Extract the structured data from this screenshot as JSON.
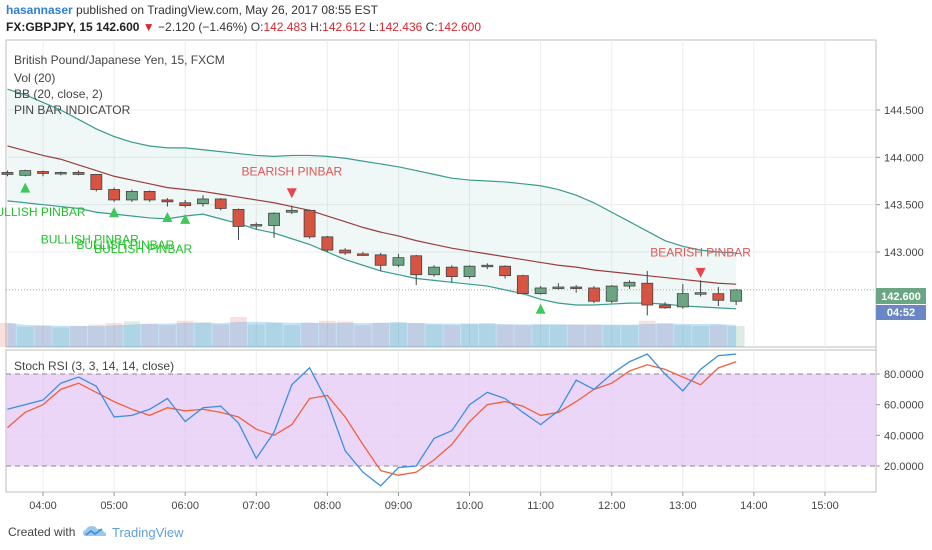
{
  "header": {
    "user": "hasannaser",
    "published_text": "published on TradingView.com, May 26, 2017 08:55 EST",
    "symbol_line": "FX:GBPJPY, 15",
    "last": "142.600",
    "change": "−2.120 (−1.46%)",
    "o_label": "O:",
    "o_value": "142.483",
    "h_label": "H:",
    "h_value": "142.612",
    "l_label": "L:",
    "l_value": "142.436",
    "c_label": "C:",
    "c_value": "142.600"
  },
  "legend": {
    "title": "British Pound/Japanese Yen, 15, FXCM",
    "vol": "Vol (20)",
    "bb": "BB (20, close, 2)",
    "pinbar": "PIN BAR INDICATOR",
    "stoch": "Stoch RSI (3, 3, 14, 14, close)"
  },
  "price_badge": "142.600",
  "timer_badge": "04:52",
  "footer": {
    "created": "Created with",
    "brand": "TradingView"
  },
  "colors": {
    "up": "#6ba583",
    "down": "#d75442",
    "bb_band": "#3a9b8f",
    "bb_basis": "#9b3d3d",
    "stoch_k": "#3b8fe0",
    "stoch_d": "#f0603b",
    "stoch_bg": "#e6c8f5",
    "bull_text": "#22c22a",
    "bear_text": "#e05555"
  },
  "chart_data": [
    {
      "type": "candlestick",
      "title": "British Pound/Japanese Yen, 15, FXCM",
      "x_ticks": [
        "04:00",
        "05:00",
        "06:00",
        "07:00",
        "08:00",
        "09:00",
        "10:00",
        "11:00",
        "12:00",
        "13:00",
        "14:00",
        "15:00"
      ],
      "y_ticks": [
        144.5,
        144.0,
        143.5,
        143.0
      ],
      "y_tick_labels": [
        "144.500",
        "144.000",
        "143.500",
        "143.000"
      ],
      "ylim": [
        142.32,
        144.82
      ],
      "xlim": [
        "03:30",
        "15:40"
      ],
      "candles": [
        {
          "t": "03:30",
          "o": 143.84,
          "h": 143.86,
          "l": 143.8,
          "c": 143.82
        },
        {
          "t": "03:45",
          "o": 143.81,
          "h": 143.87,
          "l": 143.8,
          "c": 143.86
        },
        {
          "t": "04:00",
          "o": 143.85,
          "h": 143.86,
          "l": 143.8,
          "c": 143.83
        },
        {
          "t": "04:15",
          "o": 143.83,
          "h": 143.85,
          "l": 143.81,
          "c": 143.84
        },
        {
          "t": "04:30",
          "o": 143.84,
          "h": 143.86,
          "l": 143.81,
          "c": 143.82
        },
        {
          "t": "04:45",
          "o": 143.82,
          "h": 143.82,
          "l": 143.64,
          "c": 143.66
        },
        {
          "t": "05:00",
          "o": 143.66,
          "h": 143.68,
          "l": 143.53,
          "c": 143.55
        },
        {
          "t": "05:15",
          "o": 143.55,
          "h": 143.66,
          "l": 143.53,
          "c": 143.64
        },
        {
          "t": "05:30",
          "o": 143.64,
          "h": 143.65,
          "l": 143.53,
          "c": 143.55
        },
        {
          "t": "05:45",
          "o": 143.55,
          "h": 143.57,
          "l": 143.48,
          "c": 143.53
        },
        {
          "t": "06:00",
          "o": 143.52,
          "h": 143.55,
          "l": 143.47,
          "c": 143.49
        },
        {
          "t": "06:15",
          "o": 143.51,
          "h": 143.6,
          "l": 143.48,
          "c": 143.56
        },
        {
          "t": "06:30",
          "o": 143.56,
          "h": 143.57,
          "l": 143.44,
          "c": 143.46
        },
        {
          "t": "06:45",
          "o": 143.45,
          "h": 143.46,
          "l": 143.13,
          "c": 143.27
        },
        {
          "t": "07:00",
          "o": 143.28,
          "h": 143.31,
          "l": 143.24,
          "c": 143.29
        },
        {
          "t": "07:15",
          "o": 143.28,
          "h": 143.42,
          "l": 143.15,
          "c": 143.41
        },
        {
          "t": "07:30",
          "o": 143.42,
          "h": 143.49,
          "l": 143.4,
          "c": 143.44
        },
        {
          "t": "07:45",
          "o": 143.44,
          "h": 143.45,
          "l": 143.14,
          "c": 143.16
        },
        {
          "t": "08:00",
          "o": 143.16,
          "h": 143.17,
          "l": 143.0,
          "c": 143.02
        },
        {
          "t": "08:15",
          "o": 143.02,
          "h": 143.04,
          "l": 142.97,
          "c": 142.99
        },
        {
          "t": "08:30",
          "o": 142.98,
          "h": 143.0,
          "l": 142.96,
          "c": 142.97
        },
        {
          "t": "08:45",
          "o": 142.97,
          "h": 142.99,
          "l": 142.8,
          "c": 142.86
        },
        {
          "t": "09:00",
          "o": 142.86,
          "h": 142.98,
          "l": 142.84,
          "c": 142.94
        },
        {
          "t": "09:15",
          "o": 142.96,
          "h": 142.97,
          "l": 142.65,
          "c": 142.76
        },
        {
          "t": "09:30",
          "o": 142.76,
          "h": 142.86,
          "l": 142.74,
          "c": 142.84
        },
        {
          "t": "09:45",
          "o": 142.84,
          "h": 142.86,
          "l": 142.68,
          "c": 142.74
        },
        {
          "t": "10:00",
          "o": 142.74,
          "h": 142.86,
          "l": 142.72,
          "c": 142.85
        },
        {
          "t": "10:15",
          "o": 142.86,
          "h": 142.88,
          "l": 142.82,
          "c": 142.86
        },
        {
          "t": "10:30",
          "o": 142.85,
          "h": 142.86,
          "l": 142.72,
          "c": 142.75
        },
        {
          "t": "10:45",
          "o": 142.75,
          "h": 142.76,
          "l": 142.55,
          "c": 142.56
        },
        {
          "t": "11:00",
          "o": 142.56,
          "h": 142.64,
          "l": 142.55,
          "c": 142.62
        },
        {
          "t": "11:15",
          "o": 142.62,
          "h": 142.67,
          "l": 142.6,
          "c": 142.63
        },
        {
          "t": "11:30",
          "o": 142.63,
          "h": 142.65,
          "l": 142.57,
          "c": 142.62
        },
        {
          "t": "11:45",
          "o": 142.62,
          "h": 142.64,
          "l": 142.46,
          "c": 142.48
        },
        {
          "t": "12:00",
          "o": 142.48,
          "h": 142.65,
          "l": 142.46,
          "c": 142.64
        },
        {
          "t": "12:15",
          "o": 142.64,
          "h": 142.7,
          "l": 142.61,
          "c": 142.68
        },
        {
          "t": "12:30",
          "o": 142.67,
          "h": 142.8,
          "l": 142.33,
          "c": 142.44
        },
        {
          "t": "12:45",
          "o": 142.44,
          "h": 142.47,
          "l": 142.4,
          "c": 142.41
        },
        {
          "t": "13:00",
          "o": 142.42,
          "h": 142.66,
          "l": 142.4,
          "c": 142.56
        },
        {
          "t": "13:15",
          "o": 142.56,
          "h": 142.7,
          "l": 142.53,
          "c": 142.57
        },
        {
          "t": "13:30",
          "o": 142.56,
          "h": 142.63,
          "l": 142.43,
          "c": 142.49
        },
        {
          "t": "13:45",
          "o": 142.48,
          "h": 142.61,
          "l": 142.44,
          "c": 142.6
        }
      ],
      "bollinger": {
        "upper": [
          144.72,
          144.66,
          144.58,
          144.5,
          144.4,
          144.3,
          144.22,
          144.16,
          144.12,
          144.1,
          144.1,
          144.08,
          144.06,
          144.04,
          144.02,
          144.01,
          144.02,
          144.02,
          144.01,
          143.99,
          143.96,
          143.93,
          143.9,
          143.86,
          143.82,
          143.78,
          143.76,
          143.75,
          143.74,
          143.72,
          143.7,
          143.66,
          143.6,
          143.52,
          143.42,
          143.32,
          143.22,
          143.12,
          143.06,
          143.02,
          143.0,
          142.99
        ],
        "basis": [
          144.12,
          144.07,
          144.02,
          143.98,
          143.92,
          143.86,
          143.8,
          143.76,
          143.72,
          143.68,
          143.66,
          143.64,
          143.61,
          143.58,
          143.55,
          143.52,
          143.48,
          143.44,
          143.38,
          143.32,
          143.26,
          143.21,
          143.17,
          143.12,
          143.08,
          143.04,
          143.01,
          142.98,
          142.95,
          142.92,
          142.89,
          142.86,
          142.84,
          142.81,
          142.79,
          142.77,
          142.75,
          142.73,
          142.71,
          142.69,
          142.67,
          142.66
        ],
        "lower": [
          143.54,
          143.52,
          143.5,
          143.48,
          143.46,
          143.42,
          143.4,
          143.38,
          143.36,
          143.35,
          143.38,
          143.4,
          143.35,
          143.3,
          143.24,
          143.2,
          143.14,
          143.08,
          143.0,
          142.92,
          142.86,
          142.8,
          142.76,
          142.72,
          142.7,
          142.68,
          142.66,
          142.64,
          142.6,
          142.56,
          142.5,
          142.46,
          142.44,
          142.44,
          142.45,
          142.46,
          142.46,
          142.45,
          142.43,
          142.42,
          142.41,
          142.4
        ]
      },
      "volume": [
        160,
        135,
        140,
        130,
        140,
        150,
        160,
        170,
        155,
        145,
        175,
        165,
        150,
        200,
        150,
        160,
        145,
        160,
        175,
        170,
        145,
        160,
        165,
        160,
        150,
        145,
        155,
        160,
        150,
        145,
        150,
        150,
        150,
        150,
        145,
        145,
        175,
        160,
        145,
        140,
        145,
        140
      ],
      "annotations": [
        {
          "text": "BEARISH PINBAR",
          "kind": "bearish",
          "at": "07:30",
          "price": 143.81
        },
        {
          "text": "BEARISH PINBAR",
          "kind": "bearish",
          "at": "13:15",
          "price": 142.95
        },
        {
          "text": "BULLISH PINBAR",
          "kind": "bullish",
          "at": "03:30",
          "price": 143.38
        },
        {
          "text": "BULLISH PINBAR",
          "kind": "bullish",
          "at": "04:15",
          "price": 143.09
        },
        {
          "text": "BULLISH PINBAR",
          "kind": "bullish",
          "at": "04:45",
          "price": 143.03
        },
        {
          "text": "BULLISH PINBAR",
          "kind": "bullish",
          "at": "05:00",
          "price": 142.99
        }
      ],
      "bull_markers": [
        {
          "at": "03:45",
          "price": 143.68
        },
        {
          "at": "05:00",
          "price": 143.42
        },
        {
          "at": "05:45",
          "price": 143.37
        },
        {
          "at": "06:00",
          "price": 143.35
        },
        {
          "at": "11:00",
          "price": 142.4
        }
      ],
      "bear_markers": [
        {
          "at": "07:30",
          "price": 143.62
        },
        {
          "at": "13:15",
          "price": 142.78
        }
      ]
    },
    {
      "type": "line",
      "title": "Stoch RSI (3, 3, 14, 14, close)",
      "ylim": [
        -3,
        110
      ],
      "y_ticks": [
        80,
        60,
        40,
        20
      ],
      "y_tick_labels": [
        "80.0000",
        "60.0000",
        "40.0000",
        "20.0000"
      ],
      "bands": [
        20,
        80
      ],
      "x": [
        "03:30",
        "03:45",
        "04:00",
        "04:15",
        "04:30",
        "04:45",
        "05:00",
        "05:15",
        "05:30",
        "05:45",
        "06:00",
        "06:15",
        "06:30",
        "06:45",
        "07:00",
        "07:15",
        "07:30",
        "07:45",
        "08:00",
        "08:15",
        "08:30",
        "08:45",
        "09:00",
        "09:15",
        "09:30",
        "09:45",
        "10:00",
        "10:15",
        "10:30",
        "10:45",
        "11:00",
        "11:15",
        "11:30",
        "11:45",
        "12:00",
        "12:15",
        "12:30",
        "12:45",
        "13:00",
        "13:15",
        "13:30",
        "13:45"
      ],
      "series": [
        {
          "name": "K",
          "values": [
            57,
            60,
            63,
            74,
            78,
            72,
            52,
            53,
            57,
            64,
            49,
            58,
            59,
            48,
            25,
            42,
            73,
            84,
            62,
            30,
            16,
            7,
            19,
            20,
            38,
            43,
            60,
            68,
            64,
            55,
            47,
            56,
            76,
            70,
            80,
            88,
            93,
            80,
            69,
            83,
            92,
            93
          ]
        },
        {
          "name": "D",
          "values": [
            45,
            55,
            60,
            70,
            74,
            68,
            62,
            57,
            53,
            58,
            56,
            57,
            55,
            52,
            44,
            40,
            47,
            64,
            66,
            52,
            34,
            17,
            14,
            16,
            24,
            34,
            49,
            60,
            62,
            59,
            53,
            55,
            62,
            70,
            74,
            82,
            86,
            83,
            78,
            73,
            84,
            88
          ]
        }
      ]
    }
  ]
}
